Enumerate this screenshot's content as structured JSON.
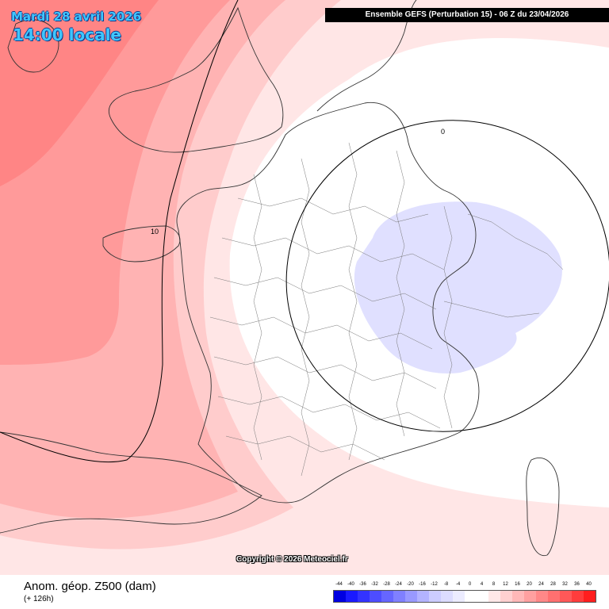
{
  "header": {
    "date": "Mardi 28 avril 2026",
    "time": "14:00 locale",
    "model_run": "Ensemble GEFS  (Perturbation 15)  -  06 Z du 23/04/2026"
  },
  "map": {
    "contour_labels": [
      "0",
      "10"
    ],
    "copyright": "Copyright © 2026 Meteociel.fr"
  },
  "footer": {
    "variable": "Anom. géop. Z500 (dam)",
    "lead_time": "(+ 126h)"
  },
  "legend": {
    "values": [
      "-44",
      "-40",
      "-36",
      "-32",
      "-28",
      "-24",
      "-20",
      "-16",
      "-12",
      "-8",
      "-4",
      "0",
      "4",
      "8",
      "12",
      "16",
      "20",
      "24",
      "28",
      "32",
      "36",
      "40"
    ],
    "colors": [
      "#0000e0",
      "#1a1aff",
      "#3333ff",
      "#4d4dff",
      "#6666ff",
      "#8080ff",
      "#9999ff",
      "#b3b3ff",
      "#ccccff",
      "#dcdcff",
      "#ececff",
      "#ffffff",
      "#ffffff",
      "#ffe8e8",
      "#ffd0d0",
      "#ffb8b8",
      "#ffa0a0",
      "#ff8888",
      "#ff7070",
      "#ff5858",
      "#ff3c3c",
      "#ff1e1e"
    ]
  }
}
